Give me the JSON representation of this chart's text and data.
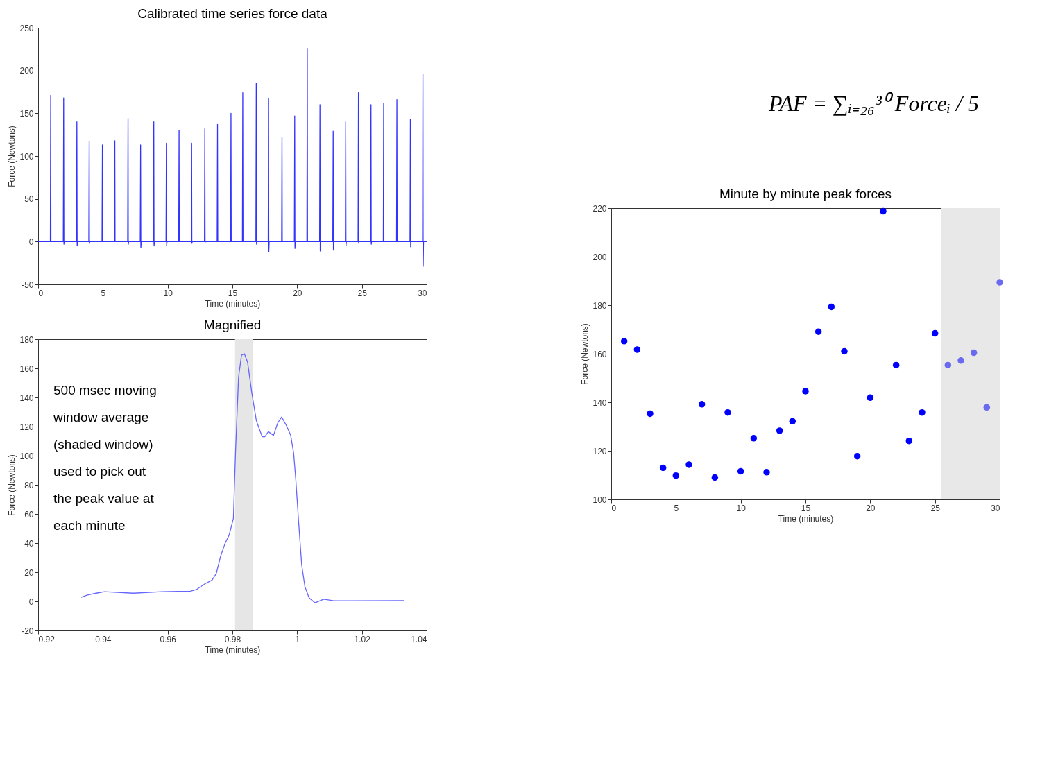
{
  "chart_data": [
    {
      "type": "line",
      "title": "Calibrated time series force data",
      "xlabel": "Time (minutes)",
      "ylabel": "Force (Newtons)",
      "xlim": [
        0,
        30
      ],
      "xticks": [
        0,
        5,
        10,
        15,
        20,
        25,
        30
      ],
      "ylim": [
        -50,
        250
      ],
      "yticks": [
        -50,
        0,
        50,
        100,
        150,
        200,
        250
      ],
      "series": [
        {
          "color": "#3333ff",
          "x": [
            0,
            0.94,
            0.97,
            0.99,
            1.02,
            1.94,
            1.97,
            1.99,
            2.02,
            2.96,
            2.99,
            3.01,
            3.04,
            3.91,
            3.94,
            3.96,
            3.99,
            4.93,
            4.96,
            4.98,
            5.01,
            5.89,
            5.92,
            5.94,
            5.97,
            6.91,
            6.94,
            6.96,
            6.99,
            7.88,
            7.91,
            7.93,
            7.96,
            8.9,
            8.93,
            8.95,
            8.98,
            9.87,
            9.9,
            9.92,
            9.95,
            10.85,
            10.88,
            10.9,
            10.93,
            11.82,
            11.85,
            11.87,
            11.9,
            12.84,
            12.87,
            12.89,
            12.92,
            13.82,
            13.85,
            13.87,
            13.9,
            14.86,
            14.89,
            14.91,
            14.94,
            15.77,
            15.8,
            15.82,
            15.85,
            16.81,
            16.84,
            16.86,
            16.89,
            17.76,
            17.79,
            17.81,
            17.84,
            18.8,
            18.83,
            18.85,
            18.88,
            19.78,
            19.81,
            19.83,
            19.86,
            20.75,
            20.78,
            20.8,
            20.83,
            21.73,
            21.76,
            21.78,
            21.81,
            22.75,
            22.78,
            22.8,
            22.83,
            23.72,
            23.75,
            23.77,
            23.8,
            24.7,
            24.73,
            24.75,
            24.78,
            25.67,
            25.7,
            25.72,
            25.75,
            26.65,
            26.68,
            26.7,
            26.73,
            27.67,
            27.7,
            27.72,
            27.75,
            28.71,
            28.74,
            28.76,
            28.79,
            29.68,
            29.71,
            29.73,
            29.76,
            30
          ],
          "values": [
            0,
            0,
            171,
            0,
            0,
            0,
            168,
            -3,
            0,
            0,
            140,
            -5,
            0,
            0,
            117,
            -2,
            0,
            0,
            113,
            0,
            0,
            0,
            118,
            0,
            0,
            0,
            144,
            -3,
            0,
            0,
            113,
            -7,
            0,
            0,
            140,
            -5,
            0,
            0,
            115,
            -5,
            0,
            0,
            130,
            0,
            0,
            0,
            115,
            -2,
            0,
            0,
            132,
            -1,
            0,
            0,
            137,
            0,
            0,
            0,
            150,
            0,
            0,
            0,
            174,
            0,
            0,
            0,
            185,
            -3,
            0,
            0,
            167,
            -12,
            0,
            0,
            122,
            0,
            0,
            0,
            147,
            -8,
            0,
            0,
            226,
            0,
            0,
            0,
            160,
            -11,
            0,
            0,
            129,
            -10,
            0,
            0,
            140,
            -5,
            0,
            0,
            174,
            -2,
            0,
            0,
            160,
            -3,
            0,
            0,
            162,
            0,
            0,
            0,
            166,
            0,
            0,
            0,
            143,
            -6,
            0,
            0,
            196,
            -29,
            0,
            0
          ]
        }
      ]
    },
    {
      "type": "line",
      "title": "Magnified",
      "xlabel": "Time (minutes)",
      "ylabel": "Force (Newtons)",
      "xlim": [
        0.92,
        1.04
      ],
      "xticks": [
        0.92,
        0.94,
        0.96,
        0.98,
        1,
        1.02,
        1.04
      ],
      "ylim": [
        -20,
        180
      ],
      "yticks": [
        -20,
        0,
        20,
        40,
        60,
        80,
        100,
        120,
        140,
        160,
        180
      ],
      "bands": [
        {
          "axis": "x",
          "from": 0.9808,
          "to": 0.9863,
          "color": "#e6e6e6"
        }
      ],
      "annotations": [
        "500 msec moving\nwindow average\n(shaded window)\nused to pick out\nthe peak value at\neach minute"
      ],
      "series": [
        {
          "color": "#6666ff",
          "x": [
            0.9333,
            0.9352,
            0.9379,
            0.9405,
            0.9494,
            0.9582,
            0.967,
            0.9688,
            0.9715,
            0.9737,
            0.975,
            0.9763,
            0.9777,
            0.979,
            0.9803,
            0.981,
            0.9819,
            0.9828,
            0.9837,
            0.9847,
            0.986,
            0.9874,
            0.9892,
            0.99,
            0.9911,
            0.9927,
            0.994,
            0.9952,
            0.9967,
            0.998,
            0.9989,
            0.9996,
            1.0005,
            1.0014,
            1.0024,
            1.0037,
            1.0055,
            1.0082,
            1.0113,
            1.033
          ],
          "values": [
            2.8,
            4.3,
            5.6,
            6.6,
            5.6,
            6.6,
            7,
            8,
            12,
            14.6,
            19,
            30.6,
            39.6,
            45.6,
            57,
            105,
            154,
            169,
            170,
            164,
            143,
            124,
            113,
            113,
            116.5,
            114,
            122.5,
            126.6,
            120.6,
            114,
            102,
            83,
            53,
            25,
            10,
            2.4,
            -1,
            1.5,
            0.4,
            0.5
          ]
        }
      ]
    },
    {
      "type": "scatter",
      "title": "Minute by minute peak forces",
      "xlabel": "Time (minutes)",
      "ylabel": "Force (Newtons)",
      "xlim": [
        0,
        30
      ],
      "xticks": [
        0,
        5,
        10,
        15,
        20,
        25,
        30
      ],
      "ylim": [
        100,
        220
      ],
      "yticks": [
        100,
        120,
        140,
        160,
        180,
        200,
        220
      ],
      "bands": [
        {
          "axis": "x",
          "from": 25.45,
          "to": 30,
          "color": "#e8e8e8"
        }
      ],
      "annotations": [
        "PAF = ∑ᵢ₌₂₆³⁰ Forceᵢ / 5"
      ],
      "series": [
        {
          "color": "#0000ff",
          "x": [
            1,
            2,
            3,
            4,
            5,
            6,
            7,
            8,
            9,
            10,
            11,
            12,
            13,
            14,
            15,
            16,
            17,
            18,
            19,
            20,
            21,
            22,
            23,
            24,
            25
          ],
          "values": [
            165.2,
            161.7,
            135.3,
            113,
            109.8,
            114.3,
            139.2,
            109,
            135.8,
            111.6,
            125.2,
            111.2,
            128.3,
            132.2,
            144.6,
            169.1,
            179.3,
            161,
            117.8,
            141.9,
            218.7,
            155.3,
            124.1,
            135.8,
            168.4
          ]
        },
        {
          "color": "#6a6af0",
          "x": [
            26,
            27,
            28,
            29,
            30
          ],
          "values": [
            155.3,
            157.2,
            160.4,
            137.9,
            189.4
          ]
        }
      ]
    }
  ]
}
